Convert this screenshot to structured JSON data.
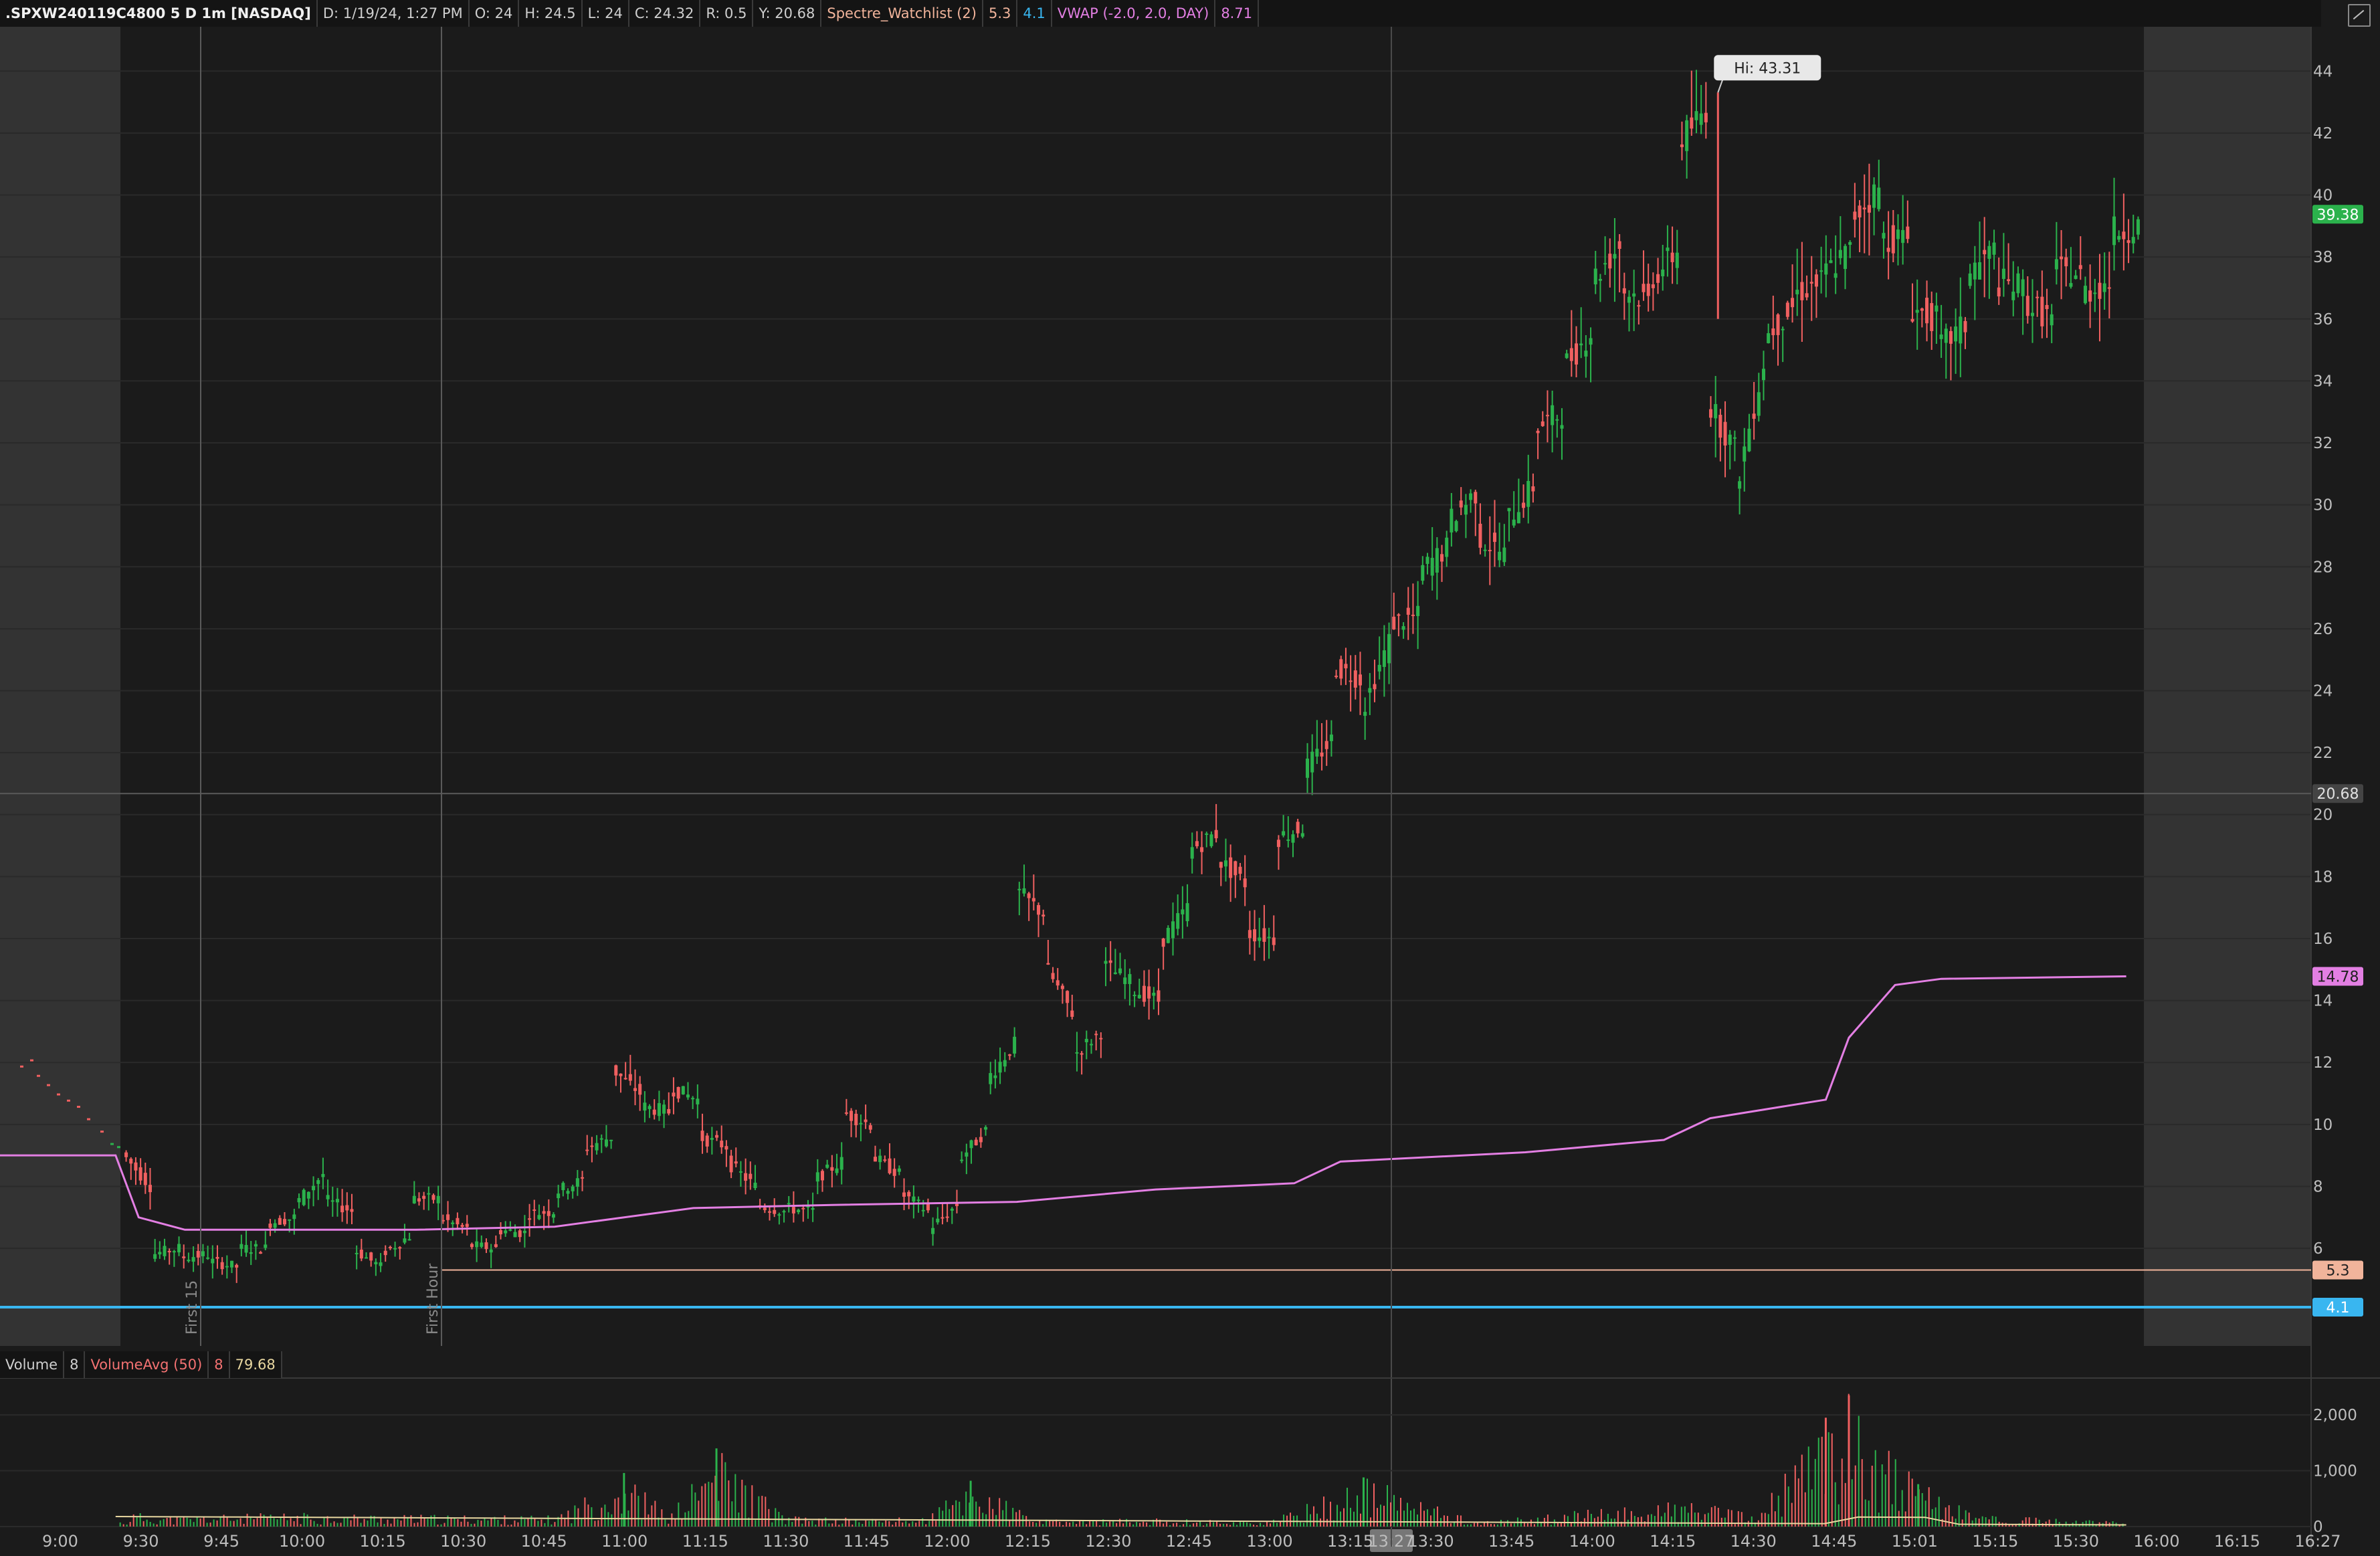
{
  "header": {
    "symbol": ".SPXW240119C4800 5 D 1m [NASDAQ]",
    "date": "D: 1/19/24, 1:27 PM",
    "open": "O: 24",
    "high": "H: 24.5",
    "low": "L: 24",
    "close": "C: 24.32",
    "range": "R: 0.5",
    "y": "Y: 20.68",
    "watchlist": "Spectre_Watchlist (2)",
    "wl_v1": "5.3",
    "wl_v2": "4.1",
    "vwap": "VWAP (-2.0, 2.0, DAY)",
    "vwap_val": "8.71"
  },
  "volume_header": {
    "label": "Volume",
    "volume_val": "8",
    "avg_label": "VolumeAvg (50)",
    "avg_val1": "8",
    "avg_val2": "79.68"
  },
  "colors": {
    "up": "#2bb24c",
    "down": "#f06060",
    "vwap": "#e37fe3",
    "line_53": "#f1b49b",
    "line_41": "#39b6f0"
  },
  "chart_data": {
    "type": "candlestick",
    "y_ticks": [
      "44",
      "42",
      "40",
      "38",
      "36",
      "34",
      "32",
      "30",
      "28",
      "26",
      "24",
      "22",
      "20",
      "18",
      "16",
      "14",
      "12",
      "10",
      "8",
      "6"
    ],
    "ylim": [
      3.0,
      45.0
    ],
    "x_ticks": [
      "9:00",
      "9:30",
      "9:45",
      "10:00",
      "10:15",
      "10:30",
      "10:45",
      "11:00",
      "11:15",
      "11:30",
      "11:45",
      "12:00",
      "12:15",
      "12:30",
      "12:45",
      "13:00",
      "13:15",
      "13:30",
      "13:45",
      "14:00",
      "14:15",
      "14:30",
      "14:45",
      "15:01",
      "15:15",
      "15:30",
      "16:00",
      "16:15",
      "16:27"
    ],
    "vertical_markers": [
      {
        "label": "First 15"
      },
      {
        "label": "First Hour"
      }
    ],
    "hi_label": "Hi: 43.31",
    "price_badges": {
      "last": "39.38",
      "cursor": "20.68",
      "vwap": "14.78",
      "line_53": "5.3",
      "line_41": "4.1"
    },
    "cursor_time": "13:27",
    "horizontal_lines": [
      {
        "value": 5.3
      },
      {
        "value": 4.1
      },
      {
        "value": 20.68
      }
    ],
    "price_path": [
      [
        9.4,
        9.1
      ],
      [
        8.0,
        5.8
      ],
      [
        6.0,
        5.7
      ],
      [
        5.8,
        5.6
      ],
      [
        5.4,
        6.0
      ],
      [
        6.0,
        6.8
      ],
      [
        7.0,
        7.4
      ],
      [
        8.4,
        7.6
      ],
      [
        7.2,
        6.0
      ],
      [
        5.4,
        5.8
      ],
      [
        6.4,
        7.6
      ],
      [
        7.6,
        7.0
      ],
      [
        6.6,
        6.1
      ],
      [
        6.0,
        6.6
      ],
      [
        6.5,
        7.1
      ],
      [
        7.2,
        7.8
      ],
      [
        8.2,
        9.2
      ],
      [
        9.6,
        11.8
      ],
      [
        11.0,
        10.6
      ],
      [
        10.4,
        11.2
      ],
      [
        10.8,
        9.6
      ],
      [
        9.3,
        8.8
      ],
      [
        8.0,
        7.4
      ],
      [
        7.2,
        7.3
      ],
      [
        7.2,
        8.2
      ],
      [
        8.8,
        10.4
      ],
      [
        10.0,
        9.0
      ],
      [
        8.4,
        7.8
      ],
      [
        7.2,
        6.6
      ],
      [
        7.4,
        8.8
      ],
      [
        9.8,
        11.4
      ],
      [
        12.6,
        17.6
      ],
      [
        16.8,
        15.2
      ],
      [
        13.6,
        12.2
      ],
      [
        13.0,
        15.2
      ],
      [
        14.6,
        14.4
      ],
      [
        14.0,
        15.8
      ],
      [
        17.0,
        18.8
      ],
      [
        19.4,
        18.6
      ],
      [
        17.8,
        16.2
      ],
      [
        16.0,
        19.2
      ],
      [
        19.6,
        21.4
      ],
      [
        22.4,
        24.8
      ],
      [
        24.4,
        23.2
      ],
      [
        25.6,
        26.2
      ],
      [
        26.4,
        27.8
      ],
      [
        28.6,
        29.4
      ],
      [
        30.4,
        29.0
      ],
      [
        28.4,
        29.4
      ],
      [
        30.6,
        32.4
      ],
      [
        33.0,
        34.4
      ],
      [
        35.6,
        37.2
      ],
      [
        38.4,
        37.0
      ],
      [
        36.6,
        37.2
      ],
      [
        38.2,
        41.6
      ],
      [
        42.8,
        33.4
      ],
      [
        31.8,
        30.4
      ],
      [
        34.6,
        35.4
      ],
      [
        36.4,
        36.8
      ],
      [
        37.2,
        37.4
      ],
      [
        38.2,
        39.2
      ],
      [
        40.2,
        38.6
      ],
      [
        38.6,
        36.4
      ],
      [
        36.0,
        35.0
      ],
      [
        35.8,
        37.4
      ],
      [
        38.2,
        37.2
      ],
      [
        37.0,
        36.6
      ],
      [
        36.0,
        37.6
      ],
      [
        37.4,
        36.8
      ],
      [
        37.2,
        38.8
      ],
      [
        39.0,
        39.38
      ]
    ],
    "vwap_path": [
      [
        0.0,
        9.0
      ],
      [
        0.05,
        9.0
      ],
      [
        0.06,
        7.0
      ],
      [
        0.08,
        6.6
      ],
      [
        0.14,
        6.6
      ],
      [
        0.18,
        6.6
      ],
      [
        0.24,
        6.7
      ],
      [
        0.3,
        7.3
      ],
      [
        0.36,
        7.4
      ],
      [
        0.44,
        7.5
      ],
      [
        0.5,
        7.9
      ],
      [
        0.56,
        8.1
      ],
      [
        0.58,
        8.8
      ],
      [
        0.66,
        9.1
      ],
      [
        0.72,
        9.5
      ],
      [
        0.74,
        10.2
      ],
      [
        0.79,
        10.8
      ],
      [
        0.8,
        12.8
      ],
      [
        0.82,
        14.5
      ],
      [
        0.84,
        14.7
      ],
      [
        0.92,
        14.78
      ]
    ],
    "volume_ticks": [
      "2,000",
      "1,000",
      "0"
    ],
    "volume_ylim": [
      0,
      2600
    ],
    "volume_profile": [
      [
        0.055,
        260
      ],
      [
        0.075,
        180
      ],
      [
        0.1,
        220
      ],
      [
        0.13,
        240
      ],
      [
        0.17,
        210
      ],
      [
        0.2,
        200
      ],
      [
        0.24,
        190
      ],
      [
        0.27,
        960
      ],
      [
        0.29,
        210
      ],
      [
        0.31,
        1400
      ],
      [
        0.34,
        180
      ],
      [
        0.37,
        150
      ],
      [
        0.4,
        160
      ],
      [
        0.42,
        820
      ],
      [
        0.45,
        120
      ],
      [
        0.5,
        140
      ],
      [
        0.55,
        100
      ],
      [
        0.59,
        880
      ],
      [
        0.64,
        80
      ],
      [
        0.68,
        260
      ],
      [
        0.73,
        460
      ],
      [
        0.76,
        200
      ],
      [
        0.79,
        1950
      ],
      [
        0.8,
        2350
      ],
      [
        0.83,
        760
      ],
      [
        0.86,
        200
      ],
      [
        0.9,
        120
      ],
      [
        0.92,
        80
      ]
    ]
  }
}
